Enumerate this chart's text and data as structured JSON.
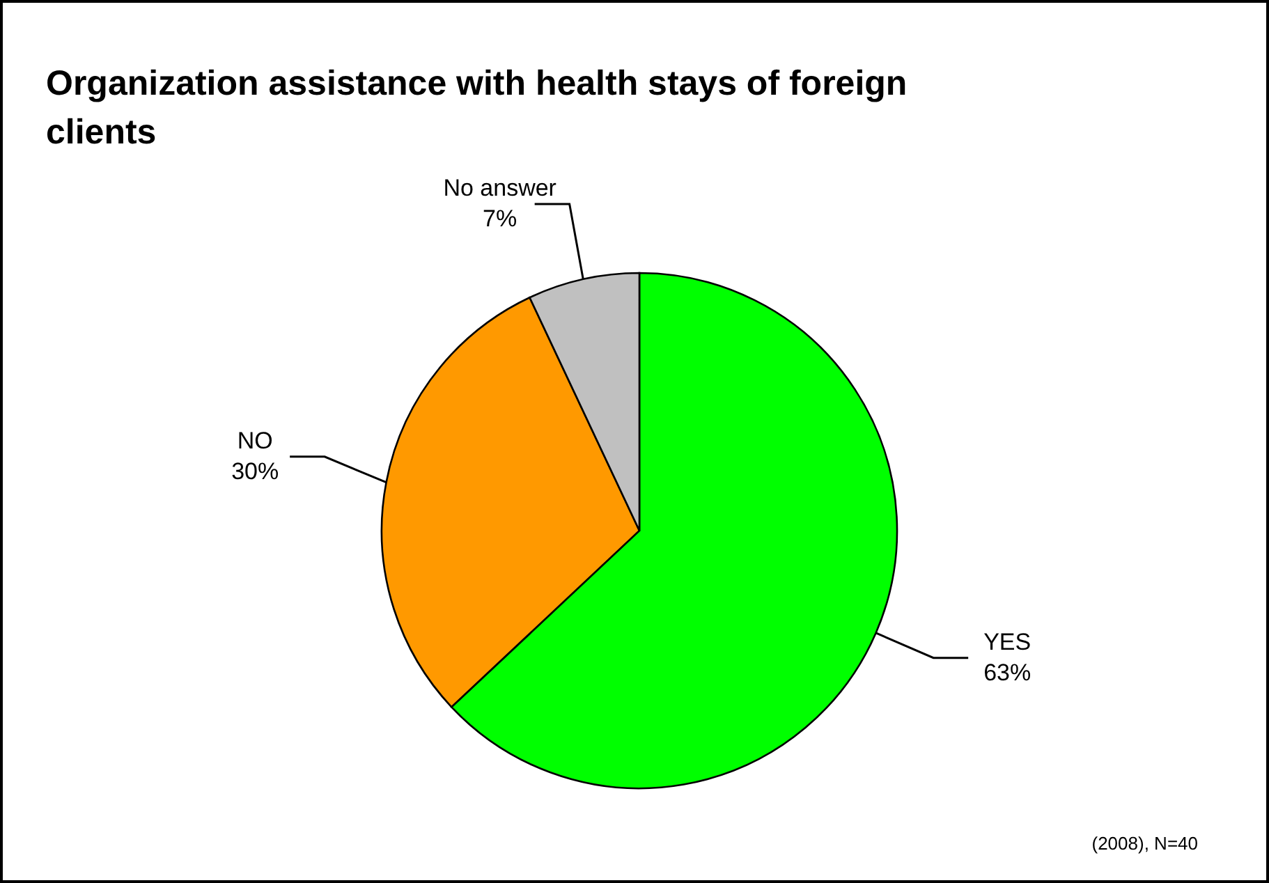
{
  "chart_data": {
    "type": "pie",
    "title": "Organization assistance with health stays of foreign clients",
    "categories": [
      "YES",
      "NO",
      "No answer"
    ],
    "values": [
      63,
      30,
      7
    ],
    "colors": [
      "#00ff00",
      "#ff9900",
      "#c0c0c0"
    ],
    "value_labels": [
      "63%",
      "30%",
      "7%"
    ],
    "annotations": [
      "(2008), N=40"
    ]
  }
}
